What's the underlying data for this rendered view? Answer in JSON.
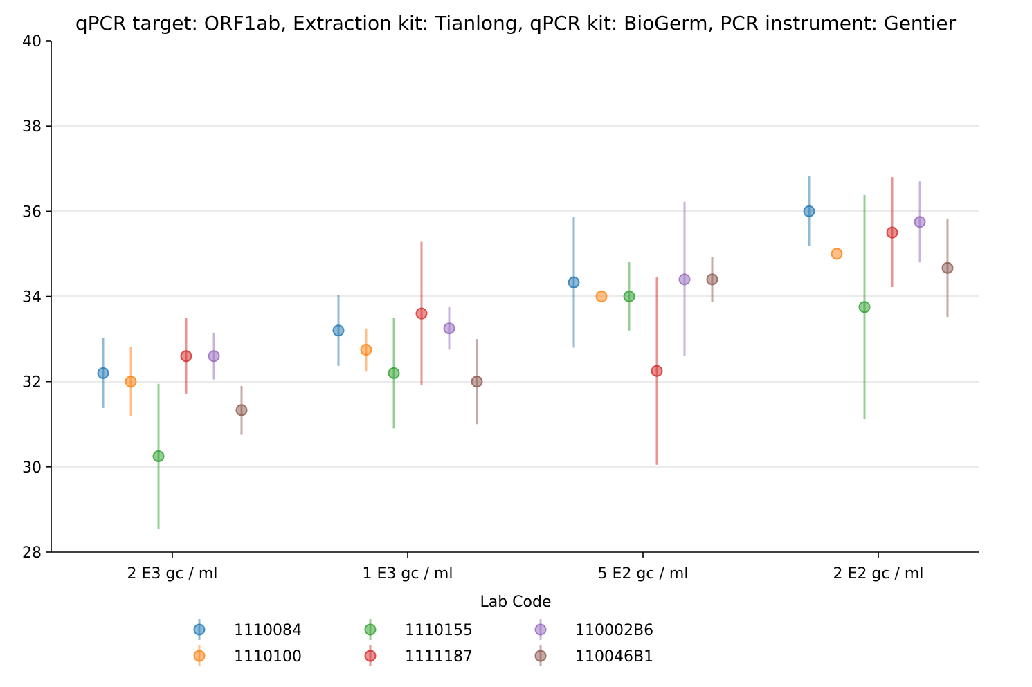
{
  "chart_data": {
    "type": "scatter",
    "title": "qPCR target: ORF1ab, Extraction kit: Tianlong, qPCR kit: BioGerm, PCR instrument: Gentier",
    "xlabel": "",
    "ylabel": "",
    "categories": [
      "2 E3 gc / ml",
      "1 E3 gc / ml",
      "5 E2 gc / ml",
      "2 E2 gc / ml"
    ],
    "ylim": [
      28,
      40
    ],
    "yticks": [
      28,
      30,
      32,
      34,
      36,
      38,
      40
    ],
    "grid": "horizontal",
    "legend": {
      "title": "Lab Code",
      "placement": "bottom-center",
      "columns": 4
    },
    "series": [
      {
        "name": "1110084",
        "color": "#1f77b4",
        "values": [
          32.2,
          33.2,
          34.33,
          36.0
        ],
        "err_low": [
          31.38,
          32.37,
          32.8,
          35.18
        ],
        "err_high": [
          33.03,
          34.03,
          35.87,
          36.83
        ]
      },
      {
        "name": "1110100",
        "color": "#ff7f0e",
        "values": [
          32.0,
          32.75,
          34.0,
          35.0
        ],
        "err_low": [
          31.2,
          32.25,
          34.0,
          35.0
        ],
        "err_high": [
          32.82,
          33.25,
          34.0,
          35.0
        ]
      },
      {
        "name": "1110155",
        "color": "#2ca02c",
        "values": [
          30.25,
          32.2,
          34.0,
          33.75
        ],
        "err_low": [
          28.55,
          30.9,
          33.2,
          31.12
        ],
        "err_high": [
          31.95,
          33.5,
          34.82,
          36.38
        ]
      },
      {
        "name": "1111187",
        "color": "#d62728",
        "values": [
          32.6,
          33.6,
          32.25,
          35.5
        ],
        "err_low": [
          31.72,
          31.92,
          30.05,
          34.22
        ],
        "err_high": [
          33.5,
          35.28,
          34.45,
          36.8
        ]
      },
      {
        "name": "110002B6",
        "color": "#9467bd",
        "values": [
          32.6,
          33.25,
          34.4,
          35.75
        ],
        "err_low": [
          32.05,
          32.75,
          32.6,
          34.8
        ],
        "err_high": [
          33.15,
          33.75,
          36.22,
          36.7
        ]
      },
      {
        "name": "110046B1",
        "color": "#8c564b",
        "values": [
          31.33,
          32.0,
          34.4,
          34.67
        ],
        "err_low": [
          30.75,
          31.0,
          33.87,
          33.52
        ],
        "err_high": [
          31.9,
          33.0,
          34.93,
          35.82
        ]
      }
    ]
  }
}
